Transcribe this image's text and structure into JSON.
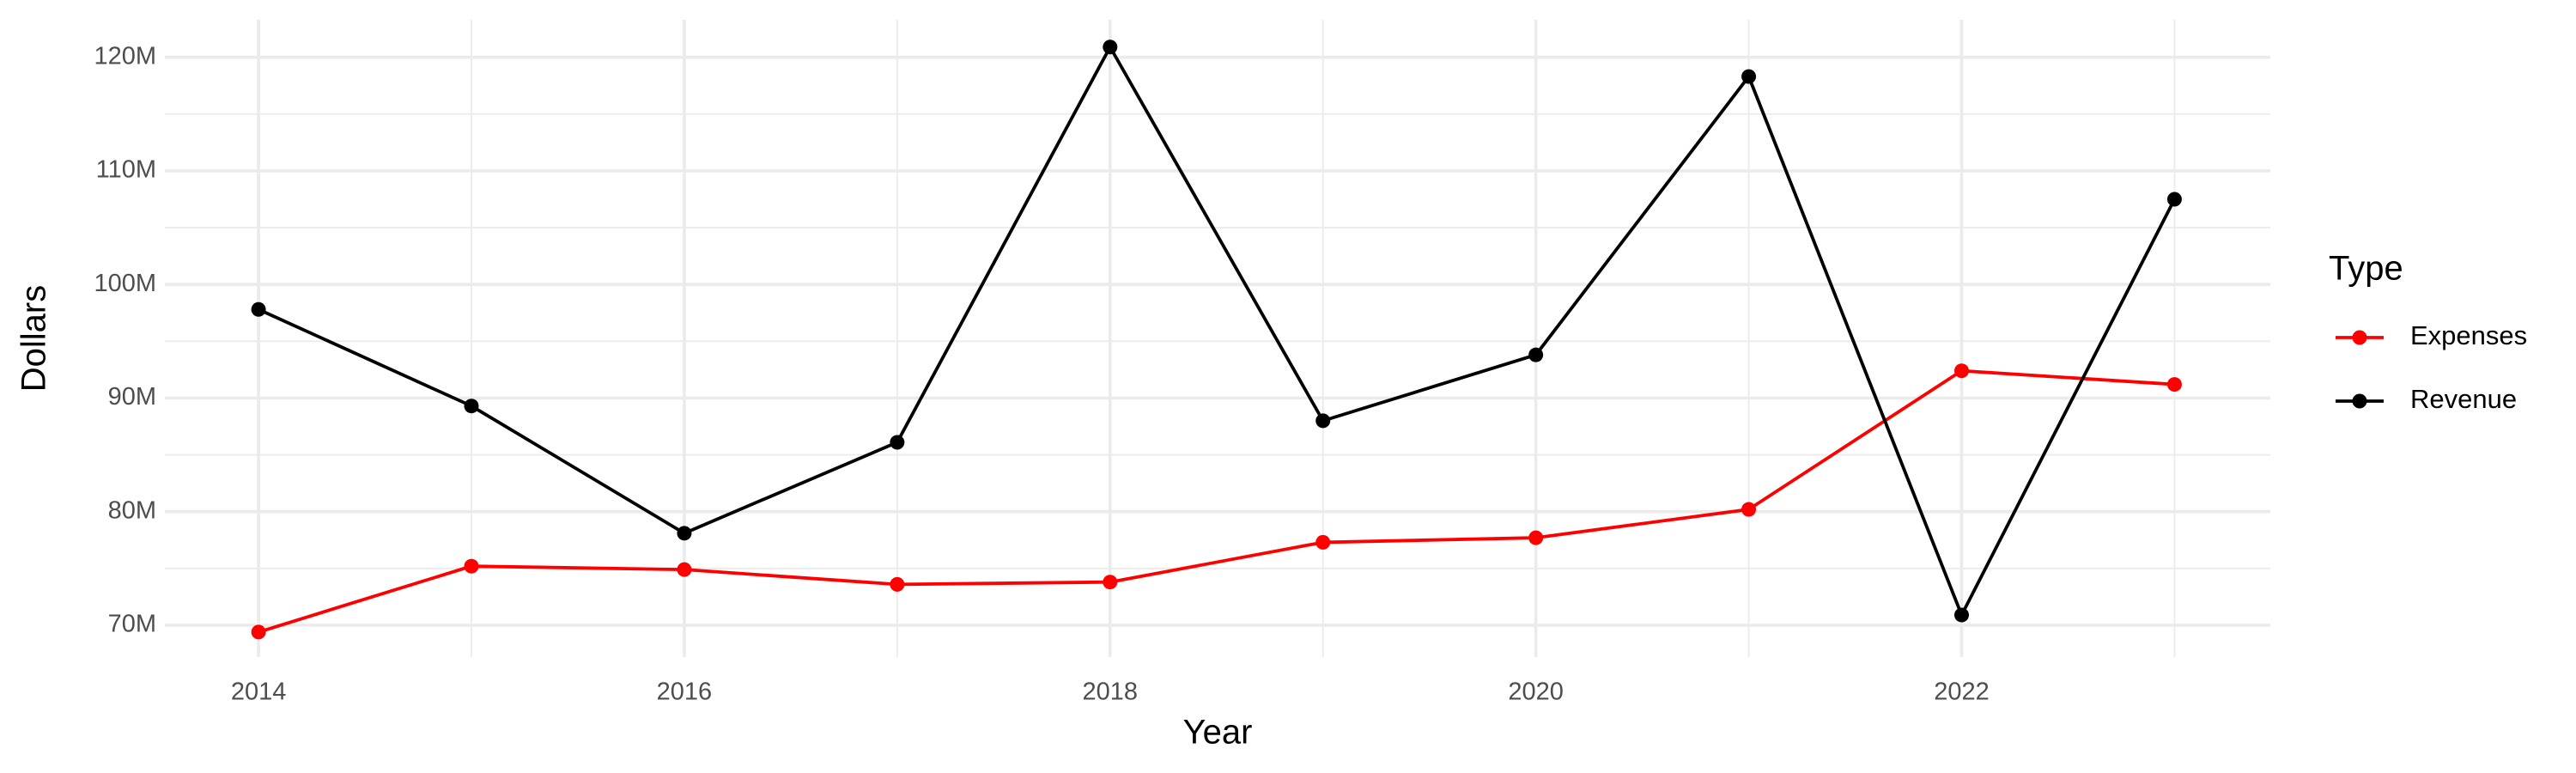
{
  "chart_data": {
    "type": "line",
    "x_label": "Year",
    "y_label": "Dollars",
    "legend_title": "Type",
    "x": [
      2014,
      2015,
      2016,
      2017,
      2018,
      2019,
      2020,
      2021,
      2022,
      2023
    ],
    "series": [
      {
        "name": "Expenses",
        "color": "#ff0000",
        "values": [
          69400000,
          75200000,
          74900000,
          73600000,
          73800000,
          77300000,
          77700000,
          80200000,
          92400000,
          91200000
        ]
      },
      {
        "name": "Revenue",
        "color": "#000000",
        "values": [
          97800000,
          89300000,
          78100000,
          86100000,
          120900000,
          88000000,
          93800000,
          118300000,
          70900000,
          107500000
        ]
      }
    ],
    "xlim": [
      2013.56,
      2023.45
    ],
    "xticks": [
      2014,
      2016,
      2018,
      2020,
      2022
    ],
    "ylim": [
      67200000,
      123300000
    ],
    "yticks": [
      {
        "value": 70000000,
        "label": "70M"
      },
      {
        "value": 80000000,
        "label": "80M"
      },
      {
        "value": 90000000,
        "label": "90M"
      },
      {
        "value": 100000000,
        "label": "100M"
      },
      {
        "value": 110000000,
        "label": "110M"
      },
      {
        "value": 120000000,
        "label": "120M"
      }
    ],
    "grid": true,
    "minor_grid": true,
    "legend": "right"
  }
}
